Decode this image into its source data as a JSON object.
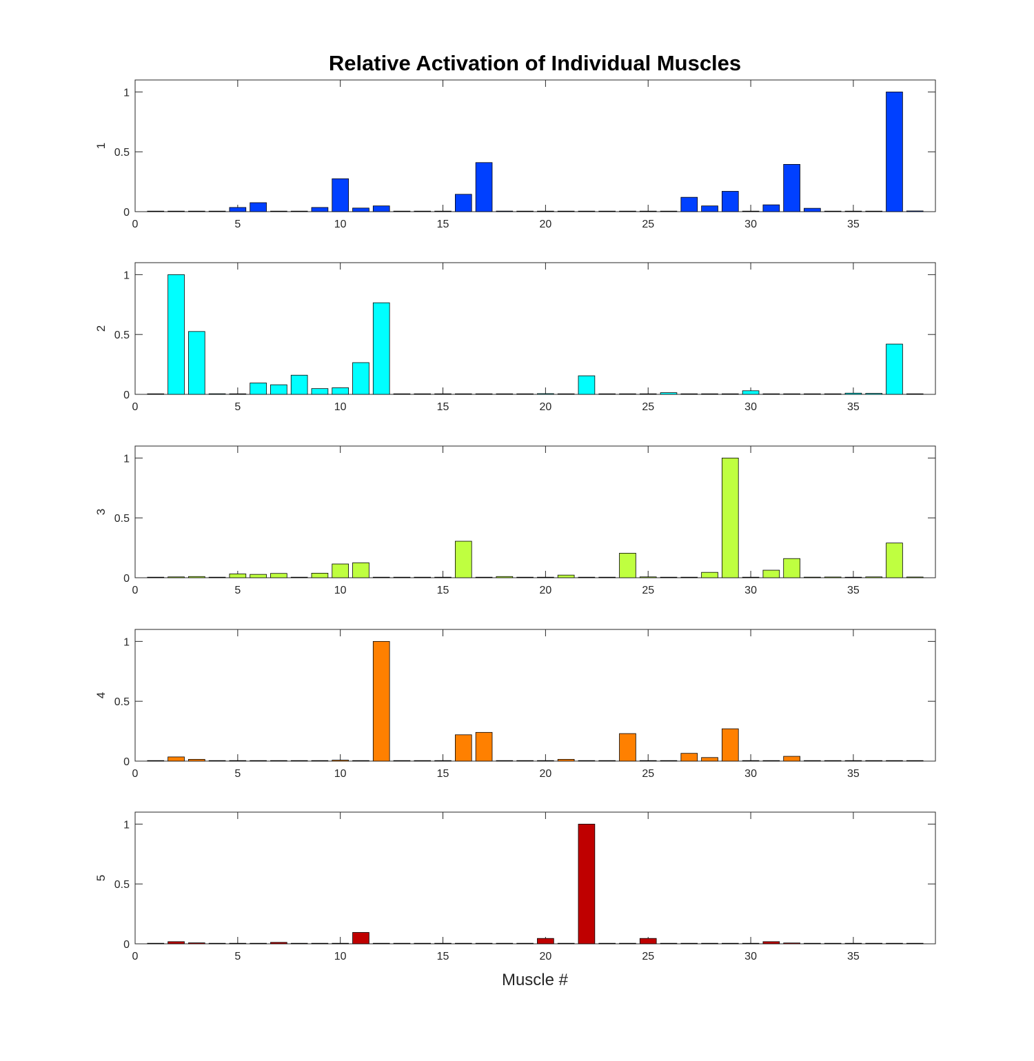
{
  "chart_data": {
    "type": "bar",
    "title": "Relative Activation of Individual Muscles",
    "xlabel": "Muscle #",
    "xlim": [
      0,
      39
    ],
    "xticks": [
      0,
      5,
      10,
      15,
      20,
      25,
      30,
      35
    ],
    "yticks": [
      0,
      0.5,
      1
    ],
    "ytick_labels": [
      "0",
      "0.5",
      "1"
    ],
    "ylim": [
      0,
      1.1
    ],
    "grid": false,
    "x": [
      1,
      2,
      3,
      4,
      5,
      6,
      7,
      8,
      9,
      10,
      11,
      12,
      13,
      14,
      15,
      16,
      17,
      18,
      19,
      20,
      21,
      22,
      23,
      24,
      25,
      26,
      27,
      28,
      29,
      30,
      31,
      32,
      33,
      34,
      35,
      36,
      37,
      38
    ],
    "series": [
      {
        "name": "1",
        "color": "#0040ff",
        "values": [
          0,
          0,
          0,
          0,
          0.035,
          0.075,
          0,
          0,
          0.035,
          0.275,
          0.03,
          0.048,
          0,
          0,
          0.002,
          0.145,
          0.41,
          0.005,
          0,
          0,
          0,
          0,
          0.003,
          0,
          0.002,
          0.003,
          0.12,
          0.048,
          0.17,
          0.003,
          0.057,
          0.395,
          0.028,
          0.003,
          0,
          0.004,
          1.0,
          0.006
        ]
      },
      {
        "name": "2",
        "color": "#00ffff",
        "values": [
          0,
          1.0,
          0.525,
          0.005,
          0,
          0.095,
          0.08,
          0.16,
          0.048,
          0.055,
          0.265,
          0.765,
          0,
          0.003,
          0,
          0,
          0,
          0,
          0,
          0.006,
          0,
          0.155,
          0,
          0,
          0,
          0.014,
          0,
          0,
          0,
          0.03,
          0,
          0,
          0,
          0.004,
          0.01,
          0.008,
          0.42,
          0
        ]
      },
      {
        "name": "3",
        "color": "#bfff40",
        "values": [
          0,
          0.007,
          0.01,
          0,
          0.032,
          0.028,
          0.036,
          0,
          0.038,
          0.115,
          0.125,
          0,
          0,
          0.003,
          0.003,
          0.305,
          0,
          0.01,
          0,
          0.003,
          0.022,
          0,
          0,
          0.205,
          0.007,
          0,
          0,
          0.045,
          1.0,
          0.003,
          0.063,
          0.16,
          0.005,
          0.006,
          0.004,
          0.007,
          0.29,
          0.006
        ]
      },
      {
        "name": "4",
        "color": "#ff8000",
        "values": [
          0,
          0.035,
          0.015,
          0,
          0,
          0,
          0.002,
          0.003,
          0,
          0.008,
          0,
          1.0,
          0,
          0,
          0,
          0.22,
          0.24,
          0,
          0,
          0,
          0.015,
          0,
          0.003,
          0.23,
          0,
          0,
          0.065,
          0.03,
          0.27,
          0,
          0,
          0.04,
          0,
          0,
          0,
          0,
          0,
          0
        ]
      },
      {
        "name": "5",
        "color": "#bf0000",
        "values": [
          0,
          0.018,
          0.008,
          0,
          0,
          0,
          0.012,
          0,
          0,
          0,
          0.095,
          0,
          0,
          0,
          0,
          0,
          0,
          0,
          0,
          0.045,
          0,
          1.0,
          0,
          0,
          0.045,
          0,
          0,
          0,
          0,
          0,
          0.018,
          0.007,
          0,
          0,
          0,
          0,
          0,
          0
        ]
      }
    ]
  }
}
